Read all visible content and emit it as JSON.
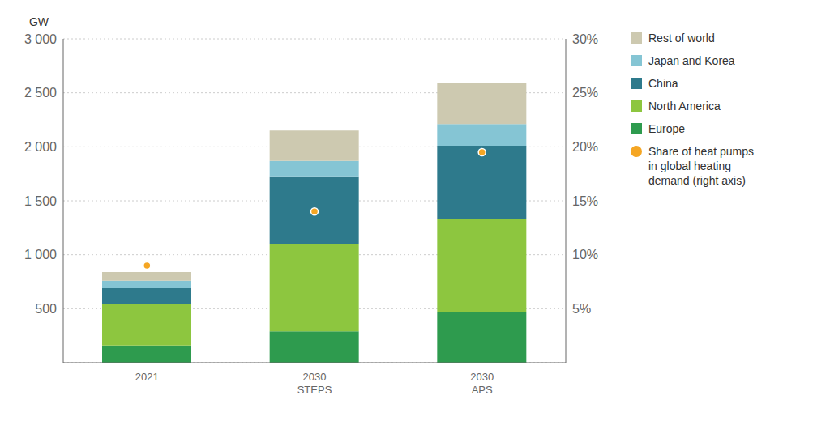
{
  "chart_data": {
    "type": "bar",
    "stacked": true,
    "categories": [
      "2021",
      "2030\nSTEPS",
      "2030\nAPS"
    ],
    "ylabel": "GW",
    "ylim": [
      0,
      3000
    ],
    "yticks": [
      500,
      {
        "value": 1000,
        "label": "1 000"
      },
      {
        "value": 1500,
        "label": "1 500"
      },
      {
        "value": 2000,
        "label": "2 000"
      },
      {
        "value": 2500,
        "label": "2 500"
      },
      {
        "value": 3000,
        "label": "3 000"
      }
    ],
    "y2lim": [
      0,
      0.3
    ],
    "y2ticks": [
      {
        "value": 0.05,
        "label": "5%"
      },
      {
        "value": 0.1,
        "label": "10%"
      },
      {
        "value": 0.15,
        "label": "15%"
      },
      {
        "value": 0.2,
        "label": "20%"
      },
      {
        "value": 0.25,
        "label": "25%"
      },
      {
        "value": 0.3,
        "label": "30%"
      }
    ],
    "grid": true,
    "legend": "right",
    "series": [
      {
        "name": "Europe",
        "color": "#2e9b4e",
        "values": [
          160,
          290,
          470
        ]
      },
      {
        "name": "North America",
        "color": "#8dc63f",
        "values": [
          380,
          810,
          860
        ]
      },
      {
        "name": "China",
        "color": "#2e7a8c",
        "values": [
          150,
          620,
          680
        ]
      },
      {
        "name": "Japan and Korea",
        "color": "#85c5d4",
        "values": [
          70,
          150,
          200
        ]
      },
      {
        "name": "Rest of world",
        "color": "#cdc9b0",
        "values": [
          80,
          280,
          380
        ]
      },
      {
        "name": "Share of heat pumps\nin global heating\ndemand (right axis)",
        "type": "scatter",
        "axis": "y2",
        "color": "#f5a623",
        "values": [
          0.09,
          0.14,
          0.195
        ]
      }
    ]
  }
}
